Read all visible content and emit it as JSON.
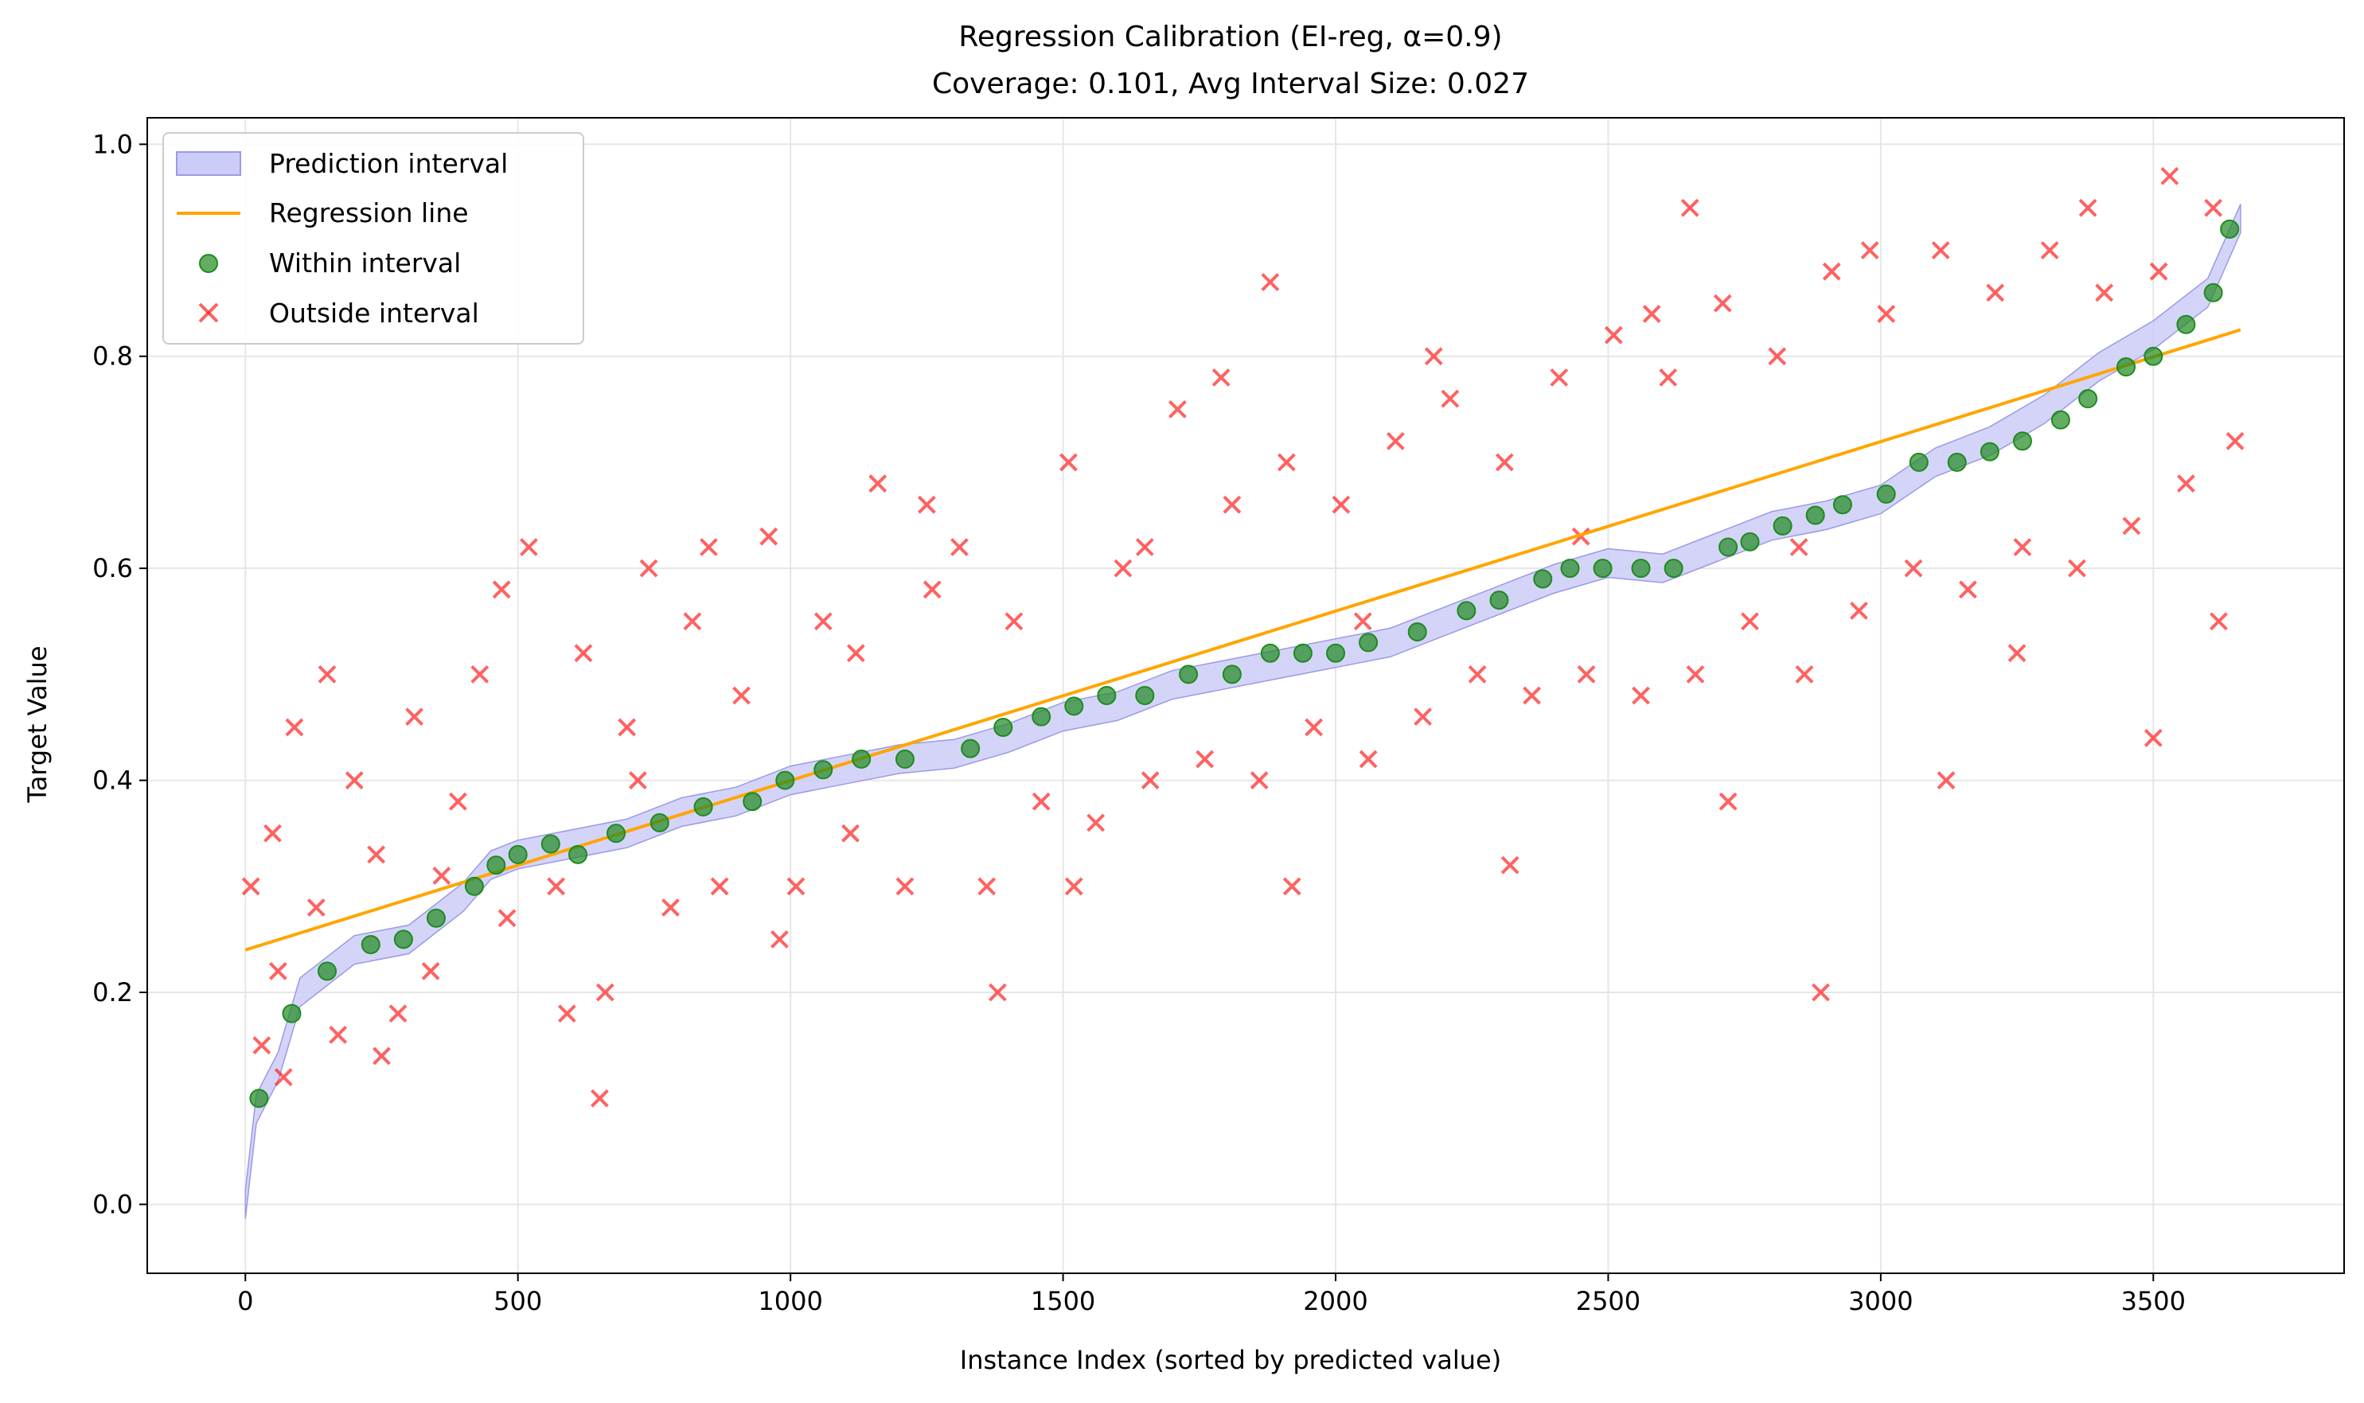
{
  "chart_data": {
    "type": "scatter",
    "title_line1": "Regression Calibration (EI-reg, α=0.9)",
    "title_line2": "Coverage: 0.101, Avg Interval Size: 0.027",
    "xlabel": "Instance Index (sorted by predicted value)",
    "ylabel": "Target Value",
    "xlim": [
      -180,
      3850
    ],
    "ylim": [
      -0.065,
      1.025
    ],
    "xticks": [
      0,
      500,
      1000,
      1500,
      2000,
      2500,
      3000,
      3500
    ],
    "xtick_labels": [
      "0",
      "500",
      "1000",
      "1500",
      "2000",
      "2500",
      "3000",
      "3500"
    ],
    "yticks": [
      0.0,
      0.2,
      0.4,
      0.6,
      0.8,
      1.0
    ],
    "ytick_labels": [
      "0.0",
      "0.2",
      "0.4",
      "0.6",
      "0.8",
      "1.0"
    ],
    "grid": true,
    "legend_position": "upper-left",
    "legend": [
      {
        "label": "Prediction interval",
        "kind": "patch"
      },
      {
        "label": "Regression line",
        "kind": "line"
      },
      {
        "label": "Within interval",
        "kind": "circle"
      },
      {
        "label": "Outside interval",
        "kind": "cross"
      }
    ],
    "n_instances": 3660,
    "regression_line": {
      "x": [
        0,
        3660
      ],
      "y": [
        0.24,
        0.825
      ]
    },
    "prediction_interval_center": {
      "x": [
        0,
        20,
        60,
        100,
        200,
        300,
        400,
        450,
        500,
        600,
        700,
        800,
        900,
        1000,
        1100,
        1200,
        1300,
        1400,
        1500,
        1600,
        1700,
        1800,
        1900,
        2000,
        2100,
        2200,
        2300,
        2400,
        2500,
        2600,
        2700,
        2800,
        2900,
        3000,
        3100,
        3200,
        3300,
        3400,
        3500,
        3600,
        3660
      ],
      "y": [
        0.0,
        0.09,
        0.13,
        0.2,
        0.24,
        0.25,
        0.29,
        0.32,
        0.33,
        0.34,
        0.35,
        0.37,
        0.38,
        0.4,
        0.41,
        0.42,
        0.425,
        0.44,
        0.46,
        0.47,
        0.49,
        0.5,
        0.51,
        0.52,
        0.53,
        0.55,
        0.57,
        0.59,
        0.605,
        0.6,
        0.62,
        0.64,
        0.65,
        0.665,
        0.7,
        0.72,
        0.75,
        0.79,
        0.82,
        0.86,
        0.93
      ]
    },
    "interval_half_width": 0.0135,
    "within_interval_points": {
      "x": [
        25,
        85,
        150,
        230,
        290,
        350,
        420,
        460,
        500,
        560,
        610,
        680,
        760,
        840,
        930,
        990,
        1060,
        1130,
        1210,
        1330,
        1390,
        1460,
        1520,
        1580,
        1650,
        1730,
        1810,
        1880,
        1940,
        2000,
        2060,
        2150,
        2240,
        2300,
        2380,
        2430,
        2490,
        2560,
        2620,
        2720,
        2760,
        2820,
        2880,
        2930,
        3010,
        3070,
        3140,
        3200,
        3260,
        3330,
        3380,
        3450,
        3500,
        3560,
        3610,
        3640
      ],
      "y": [
        0.1,
        0.18,
        0.22,
        0.245,
        0.25,
        0.27,
        0.3,
        0.32,
        0.33,
        0.34,
        0.33,
        0.35,
        0.36,
        0.375,
        0.38,
        0.4,
        0.41,
        0.42,
        0.42,
        0.43,
        0.45,
        0.46,
        0.47,
        0.48,
        0.48,
        0.5,
        0.5,
        0.52,
        0.52,
        0.52,
        0.53,
        0.54,
        0.56,
        0.57,
        0.59,
        0.6,
        0.6,
        0.6,
        0.6,
        0.62,
        0.625,
        0.64,
        0.65,
        0.66,
        0.67,
        0.7,
        0.7,
        0.71,
        0.72,
        0.74,
        0.76,
        0.79,
        0.8,
        0.83,
        0.86,
        0.92
      ]
    },
    "outside_interval_points": {
      "x": [
        10,
        30,
        50,
        70,
        90,
        130,
        170,
        200,
        240,
        280,
        310,
        340,
        390,
        430,
        480,
        520,
        570,
        620,
        660,
        700,
        740,
        780,
        820,
        870,
        910,
        960,
        1010,
        1060,
        1110,
        1160,
        1210,
        1260,
        1310,
        1360,
        1410,
        1460,
        1510,
        1560,
        1610,
        1660,
        1710,
        1760,
        1810,
        1860,
        1910,
        1960,
        2010,
        2060,
        2110,
        2160,
        2210,
        2260,
        2310,
        2360,
        2410,
        2460,
        2510,
        2560,
        2610,
        2660,
        2710,
        2760,
        2810,
        2860,
        2910,
        2960,
        3010,
        3060,
        3110,
        3160,
        3210,
        3260,
        3310,
        3360,
        3410,
        3460,
        3510,
        3560,
        3610,
        3650,
        60,
        150,
        250,
        360,
        470,
        590,
        720,
        850,
        980,
        1120,
        1250,
        1380,
        1520,
        1650,
        1790,
        1920,
        2050,
        2180,
        2320,
        2450,
        2580,
        2720,
        2850,
        2980,
        3120,
        3250,
        3380,
        3500,
        3620,
        650,
        1880,
        2650,
        2890,
        3530
      ],
      "y": [
        0.3,
        0.15,
        0.35,
        0.12,
        0.45,
        0.28,
        0.16,
        0.4,
        0.33,
        0.18,
        0.46,
        0.22,
        0.38,
        0.5,
        0.27,
        0.62,
        0.3,
        0.52,
        0.2,
        0.45,
        0.6,
        0.28,
        0.55,
        0.3,
        0.48,
        0.63,
        0.3,
        0.55,
        0.35,
        0.68,
        0.3,
        0.58,
        0.62,
        0.3,
        0.55,
        0.38,
        0.7,
        0.36,
        0.6,
        0.4,
        0.75,
        0.42,
        0.66,
        0.4,
        0.7,
        0.45,
        0.66,
        0.42,
        0.72,
        0.46,
        0.76,
        0.5,
        0.7,
        0.48,
        0.78,
        0.5,
        0.82,
        0.48,
        0.78,
        0.5,
        0.85,
        0.55,
        0.8,
        0.5,
        0.88,
        0.56,
        0.84,
        0.6,
        0.9,
        0.58,
        0.86,
        0.62,
        0.9,
        0.6,
        0.86,
        0.64,
        0.88,
        0.68,
        0.94,
        0.72,
        0.22,
        0.5,
        0.14,
        0.31,
        0.58,
        0.18,
        0.4,
        0.62,
        0.25,
        0.52,
        0.66,
        0.2,
        0.3,
        0.62,
        0.78,
        0.3,
        0.55,
        0.8,
        0.32,
        0.63,
        0.84,
        0.38,
        0.62,
        0.9,
        0.4,
        0.52,
        0.94,
        0.44,
        0.55,
        0.1,
        0.87,
        0.94,
        0.2,
        0.97
      ]
    },
    "colors": {
      "interval_fill": "#ccccf8",
      "interval_edge": "#9a9ae6",
      "regression_line": "#ffa500",
      "within": "#1f8a1f",
      "outside": "#ff2020",
      "grid": "#e6e6e6"
    }
  }
}
